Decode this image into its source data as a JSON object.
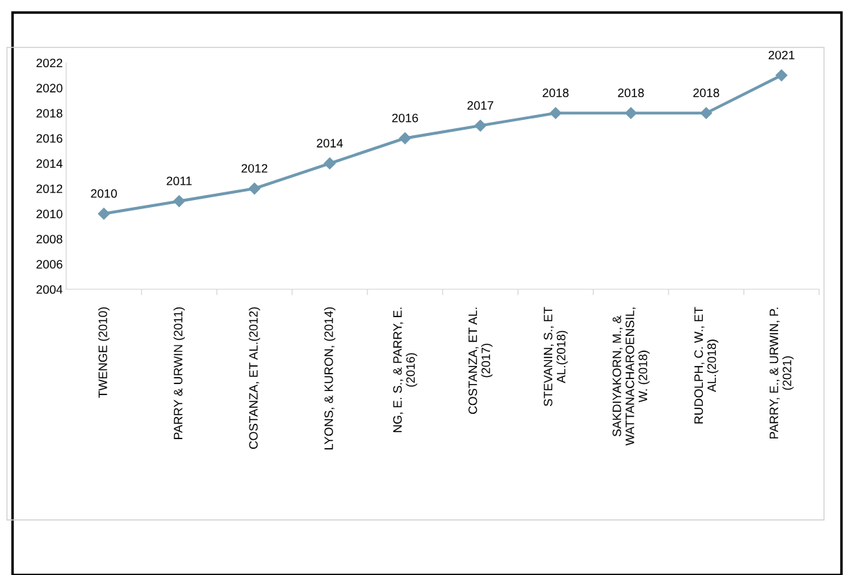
{
  "chart_data": {
    "type": "line",
    "categories": [
      "TWENGE (2010)",
      "PARRY & URWIN (2011)",
      "COSTANZA, ET AL.(2012)",
      "LYONS, & KURON, (2014)",
      "NG, E. S., & PARRY, E.\n(2016)",
      "COSTANZA, ET AL.\n(2017)",
      "STEVANIN, S., ET\nAL.(2018)",
      "SAKDIYAKORN, M., &\nWATTANACHAROENSIL,\nW. (2018)",
      "RUDOLPH, C. W., ET\nAL.(2018)",
      "PARRY, E., & URWIN, P.\n(2021)"
    ],
    "series": [
      {
        "color": "#6e99b0",
        "values": [
          2010,
          2011,
          2012,
          2014,
          2016,
          2017,
          2018,
          2018,
          2018,
          2021
        ]
      }
    ],
    "ylim": [
      2004,
      2022
    ],
    "yticks": [
      2004,
      2006,
      2008,
      2010,
      2012,
      2014,
      2016,
      2018,
      2020,
      2022
    ],
    "data_labels": true,
    "marker": "diamond",
    "line_style": "solid",
    "grid": false,
    "legend": false
  }
}
